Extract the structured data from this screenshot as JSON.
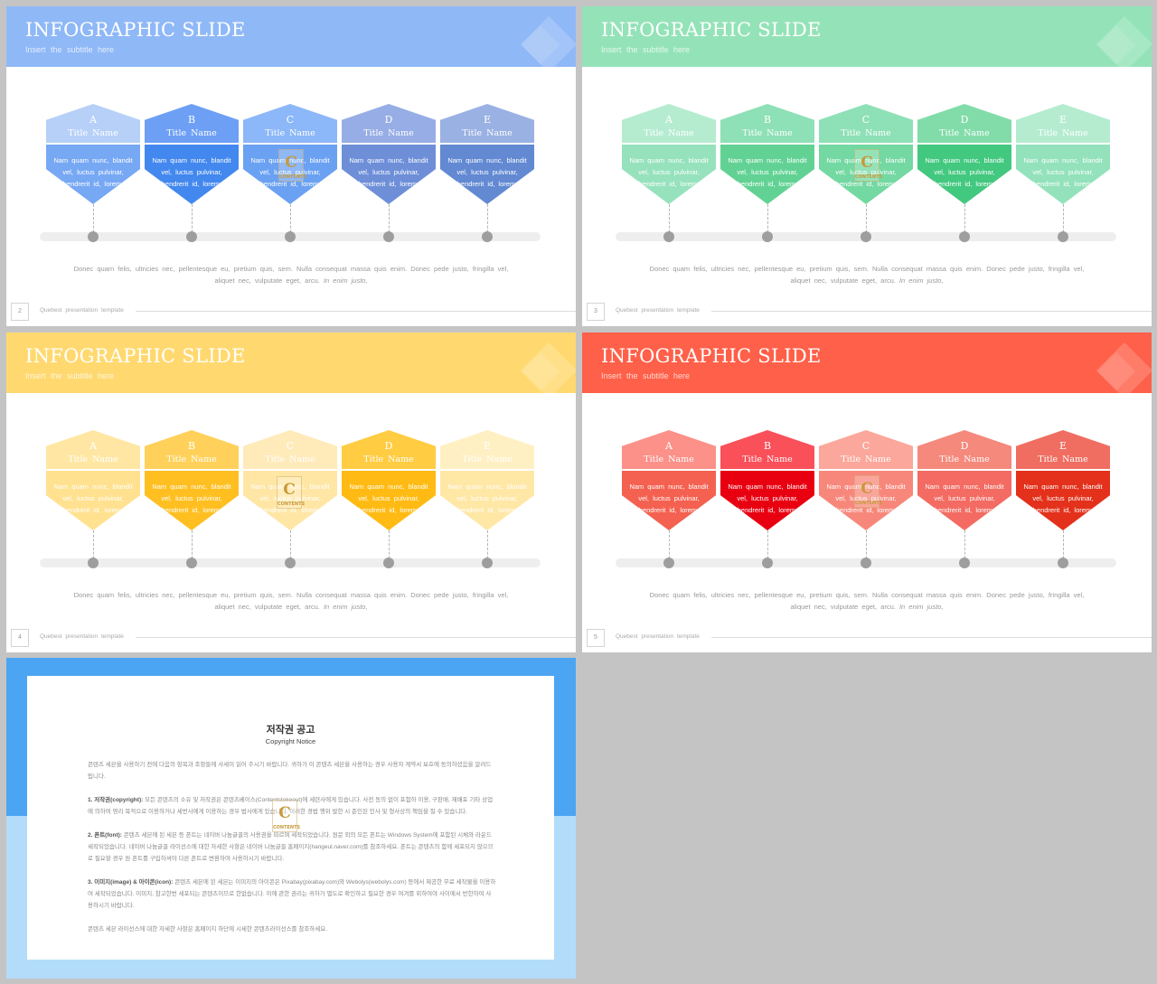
{
  "common": {
    "slide_title": "INFOGRAPHIC SLIDE",
    "slide_subtitle": "Insert  the  subtitle  here",
    "item_name": "Title  Name",
    "item_body": "Nam  quam  nunc,  blandit  vel,  luctus  pulvinar,  hendrerit  id,  lorem.",
    "body_text": "Donec  quam  felis,  ultricies  nec,  pellentesque  eu,  pretium  quis,  sem.  Nulla  consequat  massa  quis  enim.  Donec  pede  justo,  fringilla  vel,  aliquet  nec,  vulputate  eget,  arcu.",
    "body_text_italic": "In  enim justo,",
    "footer_text": "Quebest  presentation  template",
    "letters": [
      "A",
      "B",
      "C",
      "D",
      "E"
    ],
    "watermark_letter": "C",
    "watermark_small": "CONTENTS"
  },
  "slides": [
    {
      "page_number": "2",
      "theme": "blue",
      "header_color": "#8fb8f7",
      "top_colors": [
        "#b7d0f8",
        "#6d9ff5",
        "#8cb7f8",
        "#97ade5",
        "#9ab1e3"
      ],
      "bottom_colors": [
        "#77a8f4",
        "#4388ee",
        "#6aa1f2",
        "#6e8fd8",
        "#6289d2"
      ]
    },
    {
      "page_number": "3",
      "theme": "green",
      "header_color": "#94e3b8",
      "top_colors": [
        "#b5ecd0",
        "#8ee0b6",
        "#8ee0b6",
        "#82dca9",
        "#b5ecd0"
      ],
      "bottom_colors": [
        "#96e2bc",
        "#62d294",
        "#73d8a1",
        "#43c87f",
        "#93e2bb"
      ]
    },
    {
      "page_number": "4",
      "theme": "yellow",
      "header_color": "#ffd970",
      "top_colors": [
        "#ffe7a3",
        "#ffd15a",
        "#ffeaba",
        "#ffcc42",
        "#fff0c4"
      ],
      "bottom_colors": [
        "#ffe190",
        "#ffbf21",
        "#ffe6a5",
        "#ffbb13",
        "#ffe7a6"
      ]
    },
    {
      "page_number": "5",
      "theme": "red",
      "header_color": "#ff6049",
      "top_colors": [
        "#fb9189",
        "#f9505a",
        "#fba79b",
        "#f4897c",
        "#ef6e61"
      ],
      "bottom_colors": [
        "#f46150",
        "#e80011",
        "#f8877b",
        "#f36b62",
        "#e3311b"
      ]
    }
  ],
  "copyright": {
    "title": "저작권 공고",
    "subtitle": "Copyright Notice",
    "intro": "콘텐츠 세븐을 사용하기 전에 다음의 항목과 조항들에 사세이 읽어 주시기 바랍니다. 귀하가 이 콘텐츠 세븐을 사용하는 경우 사용자 계약서 보호에 동의하셨음을 알려드립니다.",
    "sec1_head": "1. 저작권(copyright):",
    "sec1_text": " 모든 콘텐츠의 소유 및 저작권은 콘텐츠베이스(Contentstokeout)에 세련사에게 있습니다. 사전 동의 없이 포함하 이용, 구판매, 재배포 기타 상업에 의하여 영리 목적으로 이용하거나 세번사에게 이용하는 경우 법사에게 있습니다. 이러한 경법 행위 발한 시 준인된 인사 및 형사상의 책임을 질 수 있습니다.",
    "sec2_head": "2. 폰트(font):",
    "sec2_text": " 콘텐츠 세븐에 된 세븐 등 폰트는 네이버 나눔글꼴의 사용권을 따르며 세작되었습니다. 원문 외의 모든 폰트는 Windows System에 포함된 시체와 라운드 세작되었습니다. 네이버 나눔글꼴 라이선스에 대한 자세한 사항은 네이버 나눔글꼴 홈페이지(hangeul.naver.com)를 참조하세요. 폰트는 콘텐츠의 함께 세포되지 않으므로 필요할 경우 원 폰트를 구입하셔야 다른 폰트로 변환하여 사용하시기 바랍니다.",
    "sec3_head": "3. 이미지(image) & 아이콘(icon):",
    "sec3_text": " 콘텐츠 세븐에 된 세븐는 이미지의 아이콘은 Pixabay(pixabay.com)와 Webolys(webolys.com) 등에서 제공한 무료 세작물을 이용하여 세작되었습니다. 이미지, 참고한번 세포되는 콘텐츠이므로 한없습니다. 이에 관한 권리는 귀하가 별도로 확인하고 필요한 경우 여겨를 위하여야 사이에서 반한하여 사용하시기 바랍니다.",
    "outro": "콘텐츠 세븐 라이선스에 대한 자세한 사항은 홈페이지 하단에 시세한 콘텐츠라이선스를 참조하세요."
  }
}
